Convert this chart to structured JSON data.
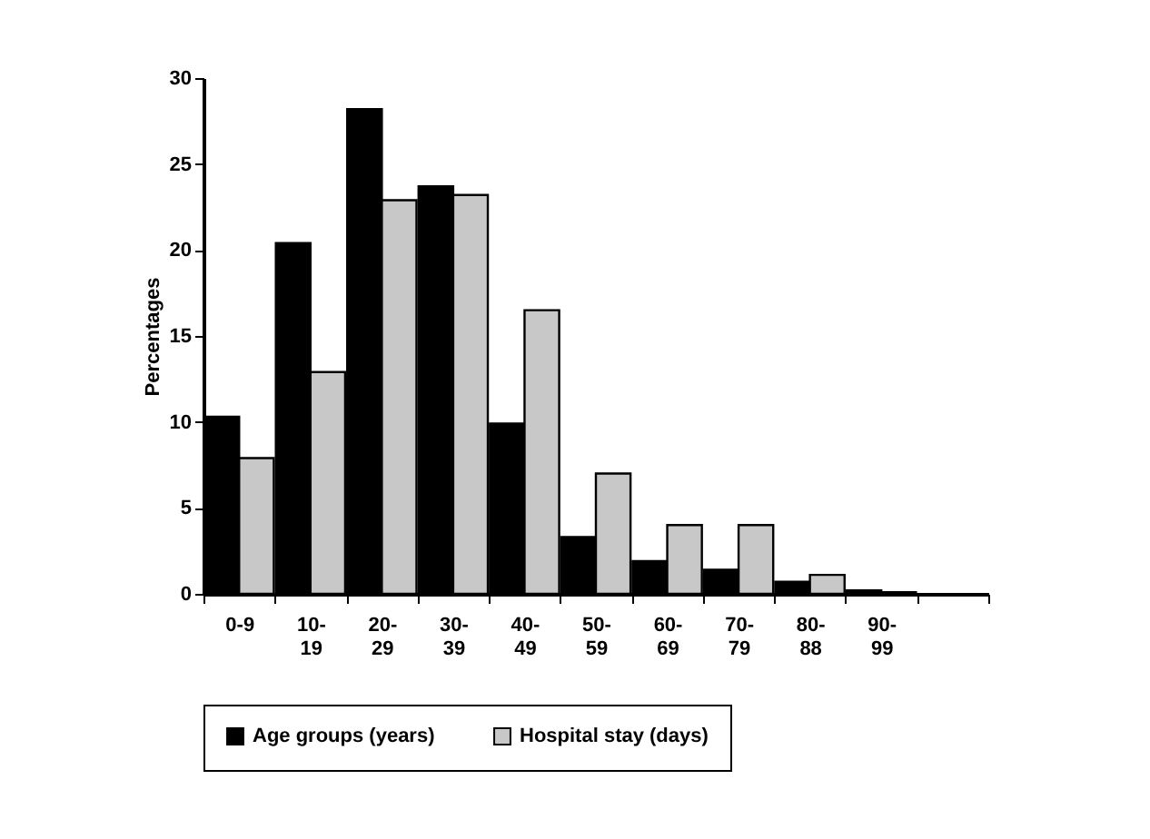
{
  "chart_data": {
    "type": "bar",
    "ylabel": "Percentages",
    "categories": [
      "0-9",
      "10- 19",
      "20- 29",
      "30- 39",
      "40- 49",
      "50- 59",
      "60- 69",
      "70- 79",
      "80- 88",
      "90- 99",
      null
    ],
    "series": [
      {
        "name": "Age groups (years)",
        "color": "#000000",
        "values": [
          10.3,
          20.4,
          28.2,
          23.7,
          9.9,
          3.3,
          1.9,
          1.4,
          0.7,
          0.2,
          null
        ]
      },
      {
        "name": "Hospital stay (days)",
        "color": "#c8c8c8",
        "values": [
          7.9,
          12.9,
          22.9,
          23.2,
          16.5,
          7.0,
          4.0,
          4.0,
          1.1,
          0.1,
          null
        ]
      }
    ],
    "ylim": [
      0,
      30
    ],
    "yticks": [
      0,
      5,
      10,
      15,
      20,
      25,
      30
    ],
    "grid": false,
    "legend": "bottom"
  }
}
